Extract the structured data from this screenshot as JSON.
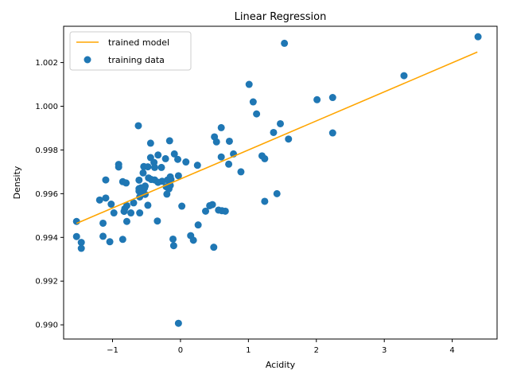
{
  "chart_data": {
    "type": "scatter",
    "title": "Linear Regression",
    "xlabel": "Acidity",
    "ylabel": "Density",
    "xlim": [
      -1.72,
      4.66
    ],
    "ylim": [
      0.98935,
      1.00366
    ],
    "xticks": [
      -1,
      0,
      1,
      2,
      3,
      4
    ],
    "yticks": [
      0.99,
      0.992,
      0.994,
      0.996,
      0.998,
      1.0,
      1.002
    ],
    "xtick_labels": [
      "−1",
      "0",
      "1",
      "2",
      "3",
      "4"
    ],
    "ytick_labels": [
      "0.990",
      "0.992",
      "0.994",
      "0.996",
      "0.998",
      "1.000",
      "1.002"
    ],
    "grid": false,
    "legend_position": "top-left",
    "colors": {
      "points": "#1f77b4",
      "line": "#ffa500"
    },
    "series": [
      {
        "name": "trained model",
        "kind": "line",
        "x": [
          -1.53,
          4.37
        ],
        "y": [
          0.99464,
          1.00248
        ]
      },
      {
        "name": "training data",
        "kind": "scatter",
        "x": [
          -1.53,
          -1.53,
          -1.46,
          -1.46,
          -1.19,
          -1.14,
          -1.14,
          -1.1,
          -1.1,
          -1.04,
          -1.02,
          -0.98,
          -0.91,
          -0.91,
          -0.85,
          -0.85,
          -0.83,
          -0.82,
          -0.8,
          -0.79,
          -0.79,
          -0.73,
          -0.69,
          -0.62,
          -0.61,
          -0.61,
          -0.61,
          -0.6,
          -0.6,
          -0.58,
          -0.56,
          -0.55,
          -0.54,
          -0.53,
          -0.52,
          -0.52,
          -0.48,
          -0.48,
          -0.47,
          -0.44,
          -0.44,
          -0.43,
          -0.39,
          -0.38,
          -0.38,
          -0.34,
          -0.33,
          -0.33,
          -0.28,
          -0.27,
          -0.22,
          -0.21,
          -0.2,
          -0.19,
          -0.17,
          -0.16,
          -0.15,
          -0.15,
          -0.14,
          -0.11,
          -0.1,
          -0.09,
          -0.04,
          -0.03,
          -0.03,
          0.02,
          0.08,
          0.15,
          0.19,
          0.25,
          0.26,
          0.37,
          0.43,
          0.47,
          0.49,
          0.5,
          0.53,
          0.56,
          0.6,
          0.6,
          0.61,
          0.66,
          0.71,
          0.72,
          0.78,
          0.89,
          1.01,
          1.07,
          1.12,
          1.2,
          1.24,
          1.24,
          1.37,
          1.42,
          1.47,
          1.53,
          1.59,
          2.01,
          2.24,
          2.24,
          3.29,
          4.38
        ],
        "y": [
          0.99473,
          0.99404,
          0.99377,
          0.9935,
          0.99571,
          0.99465,
          0.99405,
          0.99663,
          0.9958,
          0.9938,
          0.99552,
          0.99512,
          0.99734,
          0.99722,
          0.99655,
          0.99391,
          0.99519,
          0.99531,
          0.99649,
          0.99545,
          0.99473,
          0.99512,
          0.99558,
          0.99911,
          0.99662,
          0.99623,
          0.99612,
          0.99585,
          0.99512,
          0.99627,
          0.99605,
          0.99695,
          0.99724,
          0.99625,
          0.99635,
          0.99597,
          0.99547,
          0.99723,
          0.99672,
          0.99831,
          0.99765,
          0.99665,
          0.99743,
          0.9972,
          0.99663,
          0.99475,
          0.99777,
          0.99652,
          0.9972,
          0.99657,
          0.9976,
          0.99632,
          0.99598,
          0.99663,
          0.99622,
          0.99842,
          0.99677,
          0.99638,
          0.99665,
          0.99392,
          0.99362,
          0.99782,
          0.99757,
          0.99682,
          0.99007,
          0.99543,
          0.99745,
          0.99408,
          0.99387,
          0.9973,
          0.99457,
          0.9952,
          0.99545,
          0.9955,
          0.99355,
          0.9986,
          0.99837,
          0.99525,
          0.99768,
          0.99902,
          0.99522,
          0.9952,
          0.99735,
          0.9984,
          0.99782,
          0.997,
          1.001,
          1.0002,
          0.99965,
          0.99773,
          0.9976,
          0.99565,
          0.9988,
          0.996,
          0.9992,
          1.00288,
          0.9985,
          1.0003,
          1.0004,
          0.99878,
          1.0014,
          1.00318
        ]
      }
    ]
  }
}
